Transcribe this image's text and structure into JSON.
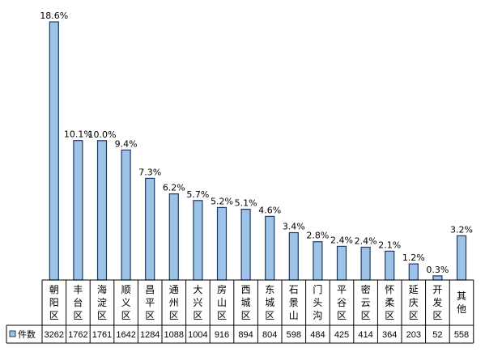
{
  "chart_data": {
    "type": "bar",
    "categories": [
      "朝阳区",
      "丰台区",
      "海淀区",
      "顺义区",
      "昌平区",
      "通州区",
      "大兴区",
      "房山区",
      "西城区",
      "东城区",
      "石景山",
      "门头沟",
      "平谷区",
      "密云区",
      "怀柔区",
      "延庆区",
      "开发区",
      "其他"
    ],
    "series": [
      {
        "name": "件数",
        "values": [
          3262,
          1762,
          1761,
          1642,
          1284,
          1088,
          1004,
          916,
          894,
          804,
          598,
          484,
          425,
          414,
          364,
          203,
          52,
          558
        ],
        "percent_labels": [
          "18.6%",
          "10.1%",
          "10.0%",
          "9.4%",
          "7.3%",
          "6.2%",
          "5.7%",
          "5.2%",
          "5.1%",
          "4.6%",
          "3.4%",
          "2.8%",
          "2.4%",
          "2.4%",
          "2.1%",
          "1.2%",
          "0.3%",
          "3.2%"
        ]
      }
    ],
    "ylim": [
      0,
      3262
    ],
    "grid": false,
    "legend": "bottom-left (data table)",
    "colors": {
      "bar_fill": "#9DC3E6",
      "bar_stroke": "#1F3864"
    }
  }
}
